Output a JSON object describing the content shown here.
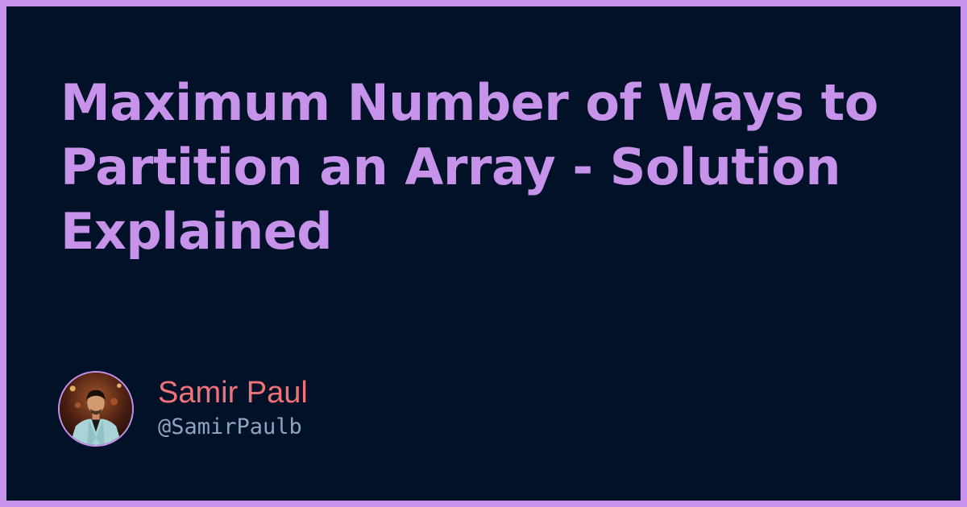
{
  "post": {
    "title": "Maximum Number of Ways to Partition an Array - Solution Explained"
  },
  "author": {
    "name": "Samir Paul",
    "handle": "@SamirPaulb"
  },
  "colors": {
    "background": "#011228",
    "border": "#c792ea",
    "title": "#c792ea",
    "name": "#f07178",
    "handle": "#8ea4c2"
  }
}
